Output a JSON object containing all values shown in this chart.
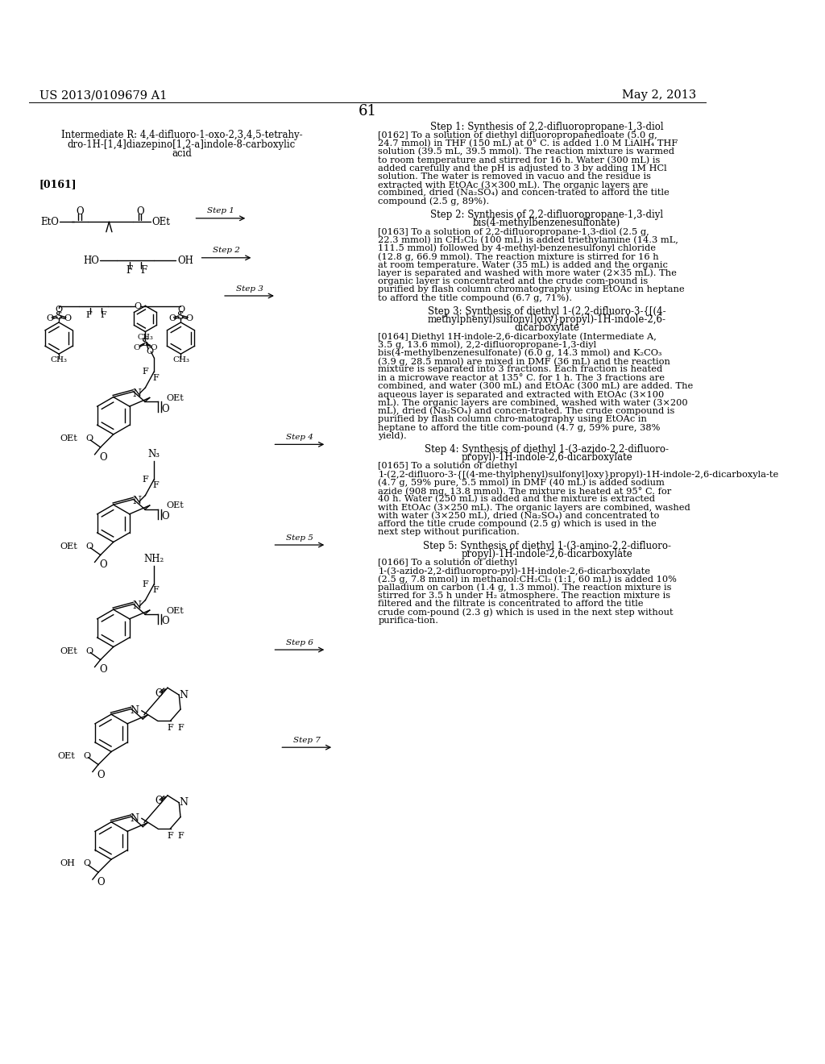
{
  "bg": "#ffffff",
  "header_left": "US 2013/0109679 A1",
  "header_right": "May 2, 2013",
  "page_num": "61",
  "inter_title": [
    "Intermediate R: 4,4-difluoro-1-oxo-2,3,4,5-tetrahy-",
    "dro-1H-[1,4]diazepino[1,2-a]indole-8-carboxylic",
    "acid"
  ],
  "para_label": "[0161]",
  "right_steps": [
    {
      "title": [
        "Step 1: Synthesis of 2,2-difluoropropane-1,3-diol"
      ],
      "body": "[0162]   To a solution of diethyl difluoropropanedioate (5.0 g, 24.7 mmol) in THF (150 mL) at 0° C. is added 1.0 M LiAlH₄ THF solution (39.5 mL, 39.5 mmol). The reaction mixture is warmed to room temperature and stirred for 16 h. Water (300 mL) is added carefully and the pH is adjusted to 3 by adding 1M HCl solution. The water is removed in vacuo and the residue is extracted with EtOAc (3×300 mL). The organic layers are combined, dried (Na₂SO₄) and concen-trated to afford the title compound (2.5 g, 89%)."
    },
    {
      "title": [
        "Step 2: Synthesis of 2,2-difluoropropane-1,3-diyl",
        "bis(4-methylbenzenesulfonate)"
      ],
      "body": "[0163]   To a solution of 2,2-difluoropropane-1,3-diol (2.5 g, 22.3 mmol) in CH₂Cl₂ (100 mL) is added triethylamine (14.3 mL, 111.5 mmol) followed by 4-methyl-benzenesulfonyl chloride (12.8 g, 66.9 mmol). The reaction mixture is stirred for 16 h at room temperature. Water (35 mL) is added and the organic layer is separated and washed with more water (2×35 mL). The organic layer is concentrated and the crude com-pound is purified by flash column chromatography using EtOAc in heptane to afford the title compound (6.7 g, 71%)."
    },
    {
      "title": [
        "Step 3: Synthesis of diethyl 1-(2,2-difluoro-3-{[(4-",
        "methylphenyl)sulfonyl]oxy}propyl)-1H-indole-2,6-",
        "dicarboxylate"
      ],
      "body": "[0164]   Diethyl 1H-indole-2,6-dicarboxylate (Intermediate A, 3.5 g, 13.6 mmol), 2,2-difluoropropane-1,3-diyl bis(4-methylbenzenesulfonate) (6.0 g, 14.3 mmol) and K₂CO₃ (3.9 g, 28.5 mmol) are mixed in DMF (36 mL) and the reaction mixture is separated into 3 fractions. Each fraction is heated in a microwave reactor at 135° C. for 1 h. The 3 fractions are combined, and water (300 mL) and EtOAc (300 mL) are added. The aqueous layer is separated and extracted with EtOAc (3×100 mL). The organic layers are combined, washed with water (3×200 mL), dried (Na₂SO₄) and concen-trated. The crude compound is purified by flash column chro-matography using EtOAc in heptane to afford the title com-pound (4.7 g, 59% pure, 38% yield)."
    },
    {
      "title": [
        "Step 4: Synthesis of diethyl 1-(3-azido-2,2-difluoro-",
        "propyl)-1H-indole-2,6-dicarboxylate"
      ],
      "body": "[0165]   To a solution of diethyl 1-(2,2-difluoro-3-{[(4-me-thylphenyl)sulfonyl]oxy}propyl)-1H-indole-2,6-dicarboxyla-te (4.7 g, 59% pure, 5.5 mmol) in DMF (40 mL) is added sodium azide (908 mg, 13.8 mmol). The mixture is heated at 95° C. for 40 h. Water (250 mL) is added and the mixture is extracted with EtOAc (3×250 mL). The organic layers are combined, washed with water (3×250 mL), dried (Na₂SO₄) and concentrated to afford the title crude compound (2.5 g) which is used in the next step without purification."
    },
    {
      "title": [
        "Step 5: Synthesis of diethyl 1-(3-amino-2,2-difluoro-",
        "propyl)-1H-indole-2,6-dicarboxylate"
      ],
      "body": "[0166]   To a solution of diethyl 1-(3-azido-2,2-difluoropro-pyl)-1H-indole-2,6-dicarboxylate (2.5 g, 7.8 mmol) in methanol:CH₂Cl₂ (1:1, 60 mL) is added 10% palladium on carbon (1.4 g, 1.3 mmol). The reaction mixture is stirred for 3.5 h under H₂ atmosphere. The reaction mixture is filtered and the filtrate is concentrated to afford the title crude com-pound (2.3 g) which is used in the next step without purifica-tion."
    }
  ]
}
